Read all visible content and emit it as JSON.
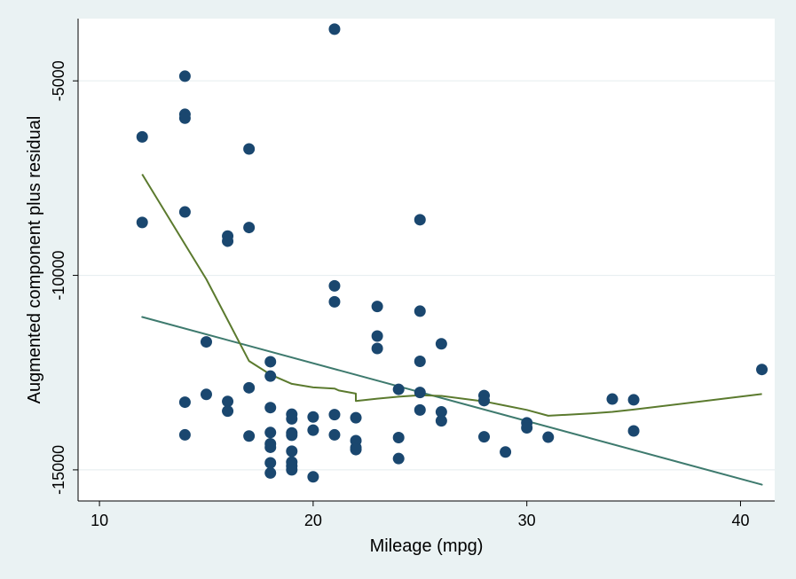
{
  "chart_data": {
    "type": "scatter",
    "title": "",
    "xlabel": "Mileage (mpg)",
    "ylabel": "Augmented component plus residual",
    "xlim": [
      9,
      41.6
    ],
    "ylim": [
      -15800,
      -3400
    ],
    "xticks": [
      10,
      20,
      30,
      40
    ],
    "xtick_labels": [
      "10",
      "20",
      "30",
      "40"
    ],
    "yticks": [
      -15000,
      -10000,
      -5000
    ],
    "ytick_labels": [
      "-15000",
      "-10000",
      "-5000"
    ],
    "grid": "horizontal",
    "legend": "none",
    "colors": {
      "points": "#1a476f",
      "fit_line": "#3e7a6e",
      "smooth_line": "#5b7a2e",
      "plot_background": "#ffffff",
      "outer_background": "#eaf2f3",
      "grid": "#e8eff1"
    },
    "points": [
      [
        12,
        -6440
      ],
      [
        12,
        -8640
      ],
      [
        14,
        -4880
      ],
      [
        14,
        -5860
      ],
      [
        14,
        -5960
      ],
      [
        14,
        -8370
      ],
      [
        14,
        -13260
      ],
      [
        14,
        -14100
      ],
      [
        15,
        -11710
      ],
      [
        15,
        -13060
      ],
      [
        16,
        -8990
      ],
      [
        16,
        -9120
      ],
      [
        16,
        -13240
      ],
      [
        16,
        -13490
      ],
      [
        17,
        -6750
      ],
      [
        17,
        -8770
      ],
      [
        17,
        -12890
      ],
      [
        17,
        -14130
      ],
      [
        18,
        -12220
      ],
      [
        18,
        -12590
      ],
      [
        18,
        -13400
      ],
      [
        18,
        -14040
      ],
      [
        18,
        -14330
      ],
      [
        18,
        -14420
      ],
      [
        18,
        -14820
      ],
      [
        18,
        -15080
      ],
      [
        19,
        -13570
      ],
      [
        19,
        -13690
      ],
      [
        19,
        -14050
      ],
      [
        19,
        -14110
      ],
      [
        19,
        -14520
      ],
      [
        19,
        -14800
      ],
      [
        19,
        -14900
      ],
      [
        19,
        -15000
      ],
      [
        20,
        -13640
      ],
      [
        20,
        -13980
      ],
      [
        20,
        -15180
      ],
      [
        21,
        -3670
      ],
      [
        21,
        -10270
      ],
      [
        21,
        -10680
      ],
      [
        21,
        -13580
      ],
      [
        21,
        -14100
      ],
      [
        22,
        -13660
      ],
      [
        22,
        -14250
      ],
      [
        22,
        -14430
      ],
      [
        22,
        -14480
      ],
      [
        23,
        -10800
      ],
      [
        23,
        -11560
      ],
      [
        23,
        -11880
      ],
      [
        24,
        -12930
      ],
      [
        24,
        -14170
      ],
      [
        24,
        -14710
      ],
      [
        25,
        -8570
      ],
      [
        25,
        -10920
      ],
      [
        25,
        -12210
      ],
      [
        25,
        -13010
      ],
      [
        25,
        -13460
      ],
      [
        26,
        -11760
      ],
      [
        26,
        -13510
      ],
      [
        26,
        -13740
      ],
      [
        28,
        -13090
      ],
      [
        28,
        -13220
      ],
      [
        28,
        -14150
      ],
      [
        29,
        -14540
      ],
      [
        30,
        -13790
      ],
      [
        30,
        -13920
      ],
      [
        31,
        -14160
      ],
      [
        34,
        -13180
      ],
      [
        35,
        -13200
      ],
      [
        35,
        -14000
      ],
      [
        41,
        -12420
      ]
    ],
    "fit_line": [
      [
        12,
        -11070
      ],
      [
        41,
        -15380
      ]
    ],
    "smooth_line": [
      [
        12,
        -7400
      ],
      [
        13,
        -8300
      ],
      [
        14,
        -9200
      ],
      [
        15,
        -10100
      ],
      [
        16,
        -11150
      ],
      [
        17,
        -12200
      ],
      [
        18,
        -12550
      ],
      [
        19,
        -12790
      ],
      [
        20,
        -12880
      ],
      [
        21,
        -12910
      ],
      [
        21.2,
        -12960
      ],
      [
        22,
        -13040
      ],
      [
        22,
        -13230
      ],
      [
        23,
        -13170
      ],
      [
        24,
        -13120
      ],
      [
        25,
        -13080
      ],
      [
        26,
        -13100
      ],
      [
        27,
        -13170
      ],
      [
        28,
        -13240
      ],
      [
        29,
        -13350
      ],
      [
        30,
        -13460
      ],
      [
        31,
        -13610
      ],
      [
        32,
        -13580
      ],
      [
        33,
        -13550
      ],
      [
        34,
        -13510
      ],
      [
        35,
        -13450
      ],
      [
        41,
        -13050
      ]
    ]
  }
}
